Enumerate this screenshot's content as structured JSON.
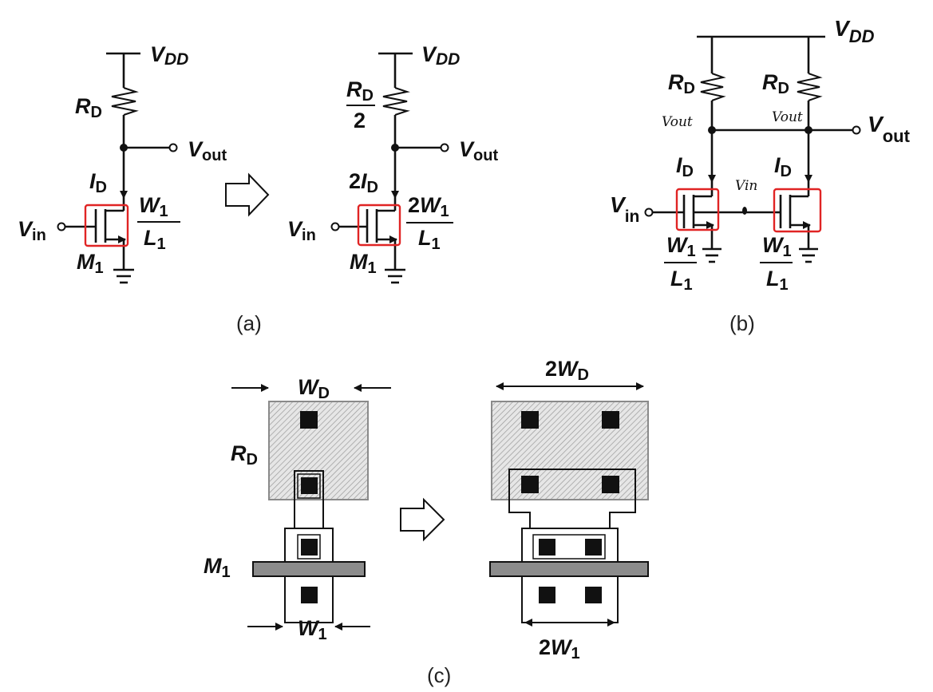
{
  "colors": {
    "ink": "#111111",
    "annotation": "#e02424",
    "poly": "#8c8c8c",
    "resistor_fill": "#e6e6e6"
  },
  "panel_a": {
    "vdd": "V",
    "vdd_sub": "DD",
    "rd": "R",
    "rd_sub": "D",
    "vout": "V",
    "vout_sub": "out",
    "id": "I",
    "id_sub": "D",
    "vin": "V",
    "vin_sub": "in",
    "m1": "M",
    "m1_sub": "1",
    "w_num": "W",
    "w_num_sub": "1",
    "l_den": "L",
    "l_den_sub": "1",
    "caption": "(a)"
  },
  "panel_a2": {
    "vdd": "V",
    "vdd_sub": "DD",
    "rd": "R",
    "rd_sub": "D",
    "rd_den": "2",
    "vout": "V",
    "vout_sub": "out",
    "id_pre": "2",
    "id": "I",
    "id_sub": "D",
    "vin": "V",
    "vin_sub": "in",
    "m1": "M",
    "m1_sub": "1",
    "w_pre": "2",
    "w_num": "W",
    "w_num_sub": "1",
    "l_den": "L",
    "l_den_sub": "1"
  },
  "panel_b": {
    "vdd": "V",
    "vdd_sub": "DD",
    "rd_left": "R",
    "rd_left_sub": "D",
    "rd_right": "R",
    "rd_right_sub": "D",
    "vout": "V",
    "vout_sub": "out",
    "id_left": "I",
    "id_left_sub": "D",
    "id_right": "I",
    "id_right_sub": "D",
    "vin": "V",
    "vin_sub": "in",
    "w_left": "W",
    "w_left_sub": "1",
    "l_left": "L",
    "l_left_sub": "1",
    "w_right": "W",
    "w_right_sub": "1",
    "l_right": "L",
    "l_right_sub": "1",
    "hand_vout_left": "Vout",
    "hand_vout_right": "Vout",
    "hand_vin": "Vin",
    "caption": "(b)"
  },
  "panel_c": {
    "wd": "W",
    "wd_sub": "D",
    "rd": "R",
    "rd_sub": "D",
    "m1": "M",
    "m1_sub": "1",
    "w1": "W",
    "w1_sub": "1",
    "wd2_pre": "2",
    "wd2": "W",
    "wd2_sub": "D",
    "w12_pre": "2",
    "w12": "W",
    "w12_sub": "1",
    "caption": "(c)"
  }
}
